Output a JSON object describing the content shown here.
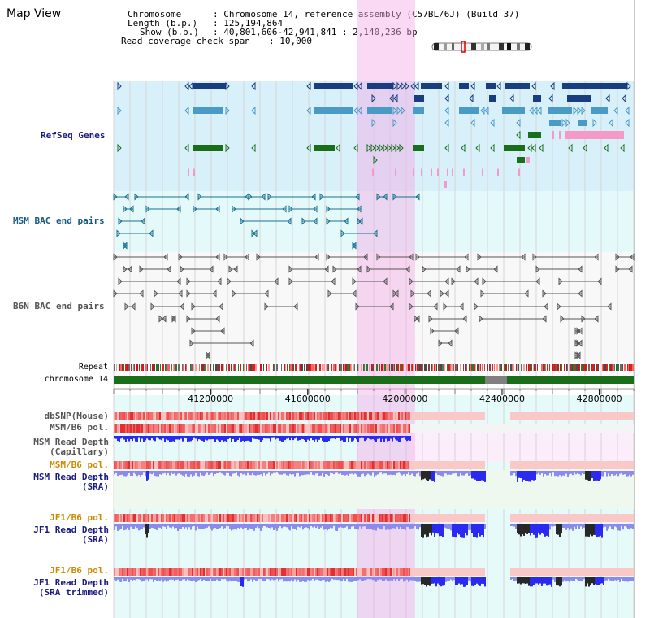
{
  "title": "Map View",
  "header": {
    "chromosome_key": "Chromosome",
    "chromosome_value": ": Chromosome 14, reference assembly (C57BL/6J) (Build 37)",
    "length_key": "Length (b.p.)",
    "length_value": ": 125,194,864",
    "show_key": "Show (b.p.)",
    "show_value": ": 40,801,606-42,941,841 : 2,140,236 bp",
    "coverage_key": "Read coverage check span",
    "coverage_value": ": 10,000"
  },
  "view": {
    "start": 40801606,
    "end": 42941841,
    "highlight_start": 41802000,
    "highlight_end": 42042000,
    "gap_start": 42330000,
    "gap_end": 42420000
  },
  "tracks": {
    "refseq": "RefSeq Genes",
    "msm_bac": "MSM BAC end pairs",
    "b6n_bac": "B6N BAC end pairs",
    "repeat": "Repeat",
    "chromosome": "chromosome 14",
    "dbsnp": "dbSNP(Mouse)",
    "msm_b6_pol": "MSM/B6 pol.",
    "msm_depth_cap_1": "MSM Read Depth",
    "msm_depth_cap_2": "(Capillary)",
    "msm_b6_pol_2": "MSM/B6 pol.",
    "msm_depth_sra_1": "MSM Read Depth",
    "msm_depth_sra_2": "(SRA)",
    "jf1_b6_pol": "JF1/B6 pol.",
    "jf1_depth_sra_1": "JF1 Read Depth",
    "jf1_depth_sra_2": "(SRA)",
    "jf1_b6_pol_2": "JF1/B6 pol.",
    "jf1_depth_trim_1": "JF1 Read Depth",
    "jf1_depth_trim_2": "(SRA trimmed)"
  },
  "axis": {
    "ticks": [
      {
        "pos": 41200000,
        "label": "41200000"
      },
      {
        "pos": 41600000,
        "label": "41600000"
      },
      {
        "pos": 42000000,
        "label": "42000000"
      },
      {
        "pos": 42400000,
        "label": "42400000"
      },
      {
        "pos": 42800000,
        "label": "42800000"
      }
    ]
  },
  "colors": {
    "refseq_bg": "#d8f0fa",
    "bac_bg": "#e4fafa",
    "depth_bg": "#f0faf0",
    "refseq_dark": "#1a3d80",
    "refseq_mid": "#4a9ac6",
    "refseq_green": "#1a6e1a",
    "refseq_pink": "#f59ac8",
    "msm_bac": "#1a7090",
    "b6n_bac": "#555555",
    "chromosome": "#1a6e1a",
    "depth_blue": "#2a2af0",
    "depth_light": "#8a8af0",
    "depth_dark": "#282828",
    "label_navy": "#1a1a80",
    "label_teal": "#1a5a80",
    "label_orange": "#d08a00"
  }
}
